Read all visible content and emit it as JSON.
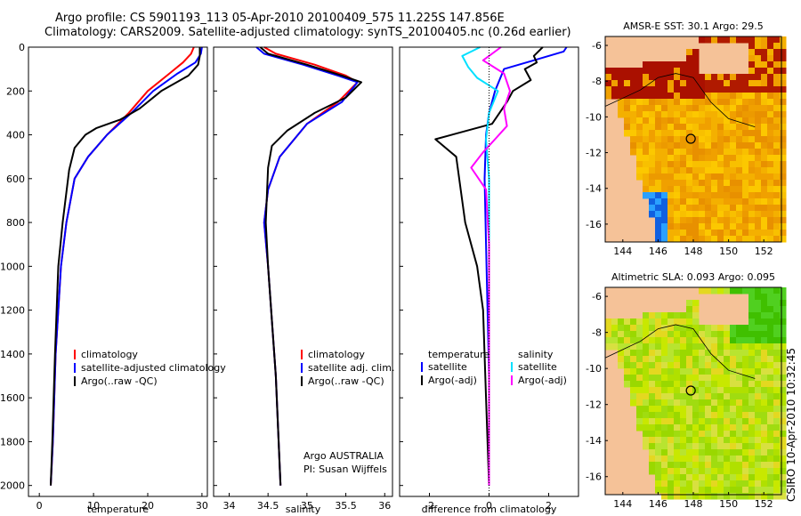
{
  "header": {
    "title_line1": "Argo profile: CS 5901193_113 05-Apr-2010 20100409_575 11.225S 147.856E",
    "title_line2": "Climatology: CARS2009. Satellite-adjusted climatology: synTS_20100405.nc (0.26d earlier)"
  },
  "credit": "CSIRO 10-Apr-2010 10:32:45",
  "colors": {
    "climatology": "#ff0000",
    "satellite": "#0000ff",
    "argo": "#000000",
    "sat_salinity": "#00e0ff",
    "argo_salinity": "#ff00ff",
    "land": "#f5c298"
  },
  "chart_data": [
    {
      "type": "line",
      "name": "temperature-profile",
      "xlabel": "temperature",
      "ylabel": "",
      "xlim": [
        -2,
        31
      ],
      "ylim": [
        2050,
        0
      ],
      "xticks": [
        0,
        10,
        20,
        30
      ],
      "yticks": [
        0,
        200,
        400,
        600,
        800,
        1000,
        1200,
        1400,
        1600,
        1800,
        2000
      ],
      "legend": [
        "climatology",
        "satellite-adjusted climatology",
        "Argo(..raw -QC)"
      ],
      "series": [
        {
          "name": "climatology",
          "color": "#ff0000",
          "x": [
            28.5,
            28.0,
            26.5,
            24.0,
            20.0,
            16.5,
            12.5,
            9.0,
            6.5,
            5.0,
            4.0,
            3.0,
            2.5,
            2.1
          ],
          "y": [
            0,
            30,
            70,
            120,
            200,
            300,
            400,
            500,
            600,
            800,
            1000,
            1400,
            1800,
            2000
          ]
        },
        {
          "name": "satellite-adjusted",
          "color": "#0000ff",
          "x": [
            30.0,
            29.8,
            28.8,
            25.5,
            21.0,
            17.0,
            12.5,
            9.0,
            6.5,
            5.0,
            4.0,
            3.0,
            2.5,
            2.1
          ],
          "y": [
            0,
            30,
            70,
            120,
            200,
            300,
            400,
            500,
            600,
            800,
            1000,
            1400,
            1800,
            2000
          ]
        },
        {
          "name": "argo",
          "color": "#000000",
          "x": [
            29.6,
            29.6,
            29.3,
            27.5,
            22.5,
            18.5,
            15.0,
            10.5,
            8.5,
            6.5,
            5.5,
            4.3,
            3.5,
            2.9,
            2.4,
            2.1
          ],
          "y": [
            0,
            40,
            80,
            130,
            200,
            280,
            330,
            370,
            400,
            460,
            560,
            800,
            1000,
            1400,
            1800,
            2000
          ]
        }
      ]
    },
    {
      "type": "line",
      "name": "salinity-profile",
      "xlabel": "salinity",
      "xlim": [
        33.8,
        36.1
      ],
      "ylim": [
        2050,
        0
      ],
      "xticks": [
        34,
        34.5,
        35,
        35.5,
        36
      ],
      "legend": [
        "climatology",
        "satellite adj. clim.",
        "Argo(..raw -QC)"
      ],
      "annotation": [
        "Argo AUSTRALIA",
        "PI: Susan Wijffels"
      ],
      "series": [
        {
          "name": "climatology",
          "color": "#ff0000",
          "x": [
            34.45,
            34.6,
            35.1,
            35.5,
            35.65,
            35.4,
            35.0,
            34.65,
            34.5,
            34.45,
            34.5,
            34.6,
            34.66
          ],
          "y": [
            0,
            30,
            80,
            130,
            160,
            250,
            350,
            500,
            650,
            800,
            1000,
            1500,
            2000
          ]
        },
        {
          "name": "satellite-adjusted",
          "color": "#0000ff",
          "x": [
            34.35,
            34.45,
            34.95,
            35.4,
            35.65,
            35.45,
            35.0,
            34.65,
            34.5,
            34.45,
            34.5,
            34.6,
            34.66
          ],
          "y": [
            0,
            30,
            80,
            130,
            160,
            250,
            350,
            500,
            650,
            800,
            1000,
            1500,
            2000
          ]
        },
        {
          "name": "argo",
          "color": "#000000",
          "x": [
            34.4,
            34.5,
            35.0,
            35.45,
            35.7,
            35.5,
            35.1,
            34.75,
            34.55,
            34.5,
            34.47,
            34.5,
            34.6,
            34.66
          ],
          "y": [
            0,
            30,
            80,
            130,
            160,
            230,
            300,
            380,
            450,
            550,
            800,
            1000,
            1500,
            2000
          ]
        }
      ]
    },
    {
      "type": "line",
      "name": "difference-from-climatology",
      "xlabel": "difference from climatology",
      "xlim": [
        -3,
        3
      ],
      "ylim": [
        2050,
        0
      ],
      "xticks": [
        -2,
        0,
        2
      ],
      "legend_left_title": "temperature",
      "legend_right_title": "salinity",
      "legend_left": [
        "satellite",
        "Argo(-adj)"
      ],
      "legend_right": [
        "satellite",
        "Argo(-adj)"
      ],
      "series": [
        {
          "name": "temperature satellite",
          "color": "#0000ff",
          "x": [
            2.6,
            2.5,
            1.5,
            0.5,
            0.2,
            0.0,
            -0.1,
            -0.15,
            -0.1,
            0.0,
            0.0
          ],
          "y": [
            0,
            20,
            60,
            100,
            200,
            300,
            400,
            600,
            900,
            1500,
            2000
          ]
        },
        {
          "name": "temperature argo",
          "color": "#000000",
          "x": [
            1.8,
            1.5,
            1.6,
            1.2,
            1.4,
            0.8,
            0.6,
            0.1,
            -1.8,
            -1.1,
            -0.8,
            -0.4,
            -0.2,
            -0.1,
            0.0
          ],
          "y": [
            0,
            40,
            70,
            100,
            150,
            200,
            250,
            350,
            420,
            500,
            800,
            1000,
            1200,
            1600,
            2000
          ]
        },
        {
          "name": "salinity satellite",
          "color": "#00e0ff",
          "x": [
            -0.3,
            -0.9,
            -0.7,
            -0.4,
            0.3,
            0.0,
            -0.1,
            0.0,
            0.0,
            0.0
          ],
          "y": [
            0,
            40,
            90,
            140,
            200,
            300,
            420,
            600,
            1200,
            2000
          ]
        },
        {
          "name": "salinity argo",
          "color": "#ff00ff",
          "x": [
            0.4,
            -0.2,
            0.5,
            0.7,
            0.5,
            0.6,
            0.2,
            -0.2,
            -0.6,
            -0.1,
            0.0,
            0.0
          ],
          "y": [
            0,
            60,
            120,
            200,
            280,
            360,
            420,
            480,
            550,
            650,
            900,
            2000
          ]
        }
      ]
    },
    {
      "type": "heatmap",
      "name": "amsr-e-sst-map",
      "title": "AMSR-E SST: 30.1 Argo: 29.5",
      "xlim": [
        143,
        153
      ],
      "ylim": [
        -17,
        -5.5
      ],
      "xticks": [
        144,
        146,
        148,
        150,
        152
      ],
      "yticks": [
        -6,
        -8,
        -10,
        -12,
        -14,
        -16
      ],
      "argo_location": {
        "lon": 147.856,
        "lat": -11.225
      }
    },
    {
      "type": "heatmap",
      "name": "altimetric-sla-map",
      "title": "Altimetric SLA: 0.093 Argo: 0.095",
      "xlim": [
        143,
        153
      ],
      "ylim": [
        -17,
        -5.5
      ],
      "xticks": [
        144,
        146,
        148,
        150,
        152
      ],
      "yticks": [
        -6,
        -8,
        -10,
        -12,
        -14,
        -16
      ],
      "argo_location": {
        "lon": 147.856,
        "lat": -11.225
      }
    }
  ]
}
